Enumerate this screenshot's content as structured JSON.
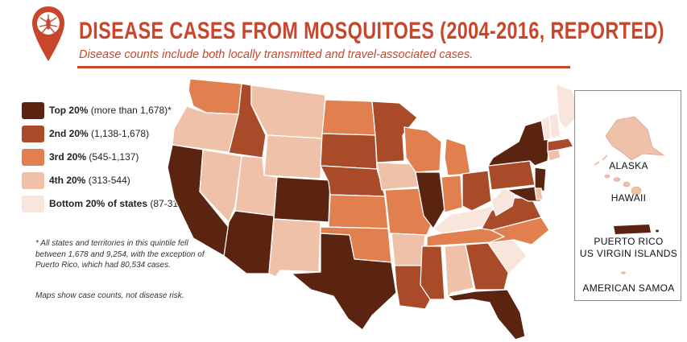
{
  "header": {
    "title": "DISEASE CASES FROM MOSQUITOES (2004-2016, REPORTED)",
    "subtitle": "Disease counts include both locally transmitted and travel-associated cases."
  },
  "colors": {
    "accent": "#c8472c",
    "top20": "#5a2410",
    "second20": "#a94a28",
    "third20": "#e17f4e",
    "fourth20": "#efc1a8",
    "bottom20": "#f8e5dc"
  },
  "legend": [
    {
      "label": "Top 20%",
      "range": "(more than 1,678)*",
      "color": "#5a2410"
    },
    {
      "label": "2nd 20%",
      "range": "(1,138-1,678)",
      "color": "#a94a28"
    },
    {
      "label": "3rd 20%",
      "range": "(545-1,137)",
      "color": "#e17f4e"
    },
    {
      "label": "4th 20%",
      "range": "(313-544)",
      "color": "#efc1a8"
    },
    {
      "label": "Bottom 20% of states",
      "range": "(87-312)",
      "color": "#f8e5dc"
    }
  ],
  "footnote": "* All states and territories in this quintile fell between 1,678 and 9,254, with the exception of Puerto Rico, which had 80,534 cases.",
  "disclaimer": "Maps show case counts, not disease risk.",
  "inset": {
    "alaska": "ALASKA",
    "hawaii": "HAWAII",
    "puerto_rico": "PUERTO RICO",
    "virgin_islands": "US VIRGIN ISLANDS",
    "american_samoa": "AMERICAN SAMOA"
  },
  "pin_icon": "mosquito-pin-icon"
}
